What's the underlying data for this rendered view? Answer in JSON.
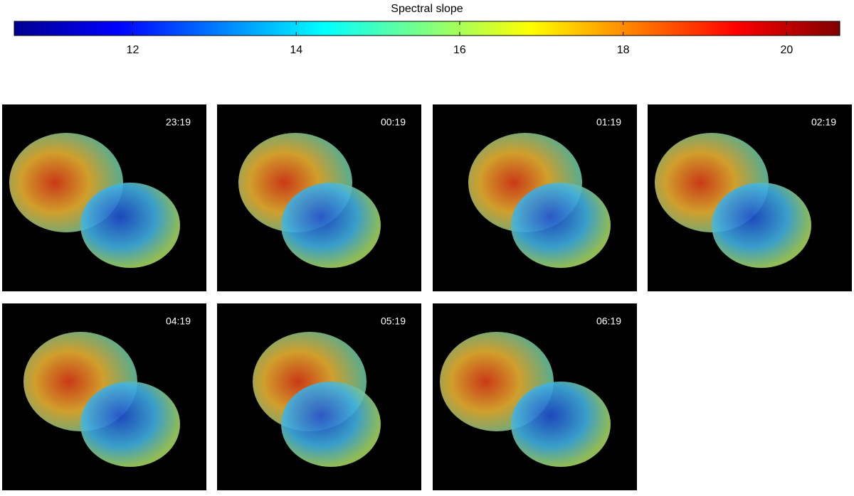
{
  "colorbar": {
    "title": "Spectral slope",
    "lim": [
      10.55,
      20.65
    ],
    "ticks": [
      12,
      14,
      16,
      18,
      20
    ]
  },
  "panels": [
    {
      "label": "23:19"
    },
    {
      "label": "00:19"
    },
    {
      "label": "01:19"
    },
    {
      "label": "02:19"
    },
    {
      "label": "04:19"
    },
    {
      "label": "05:19"
    },
    {
      "label": "06:19"
    }
  ]
}
